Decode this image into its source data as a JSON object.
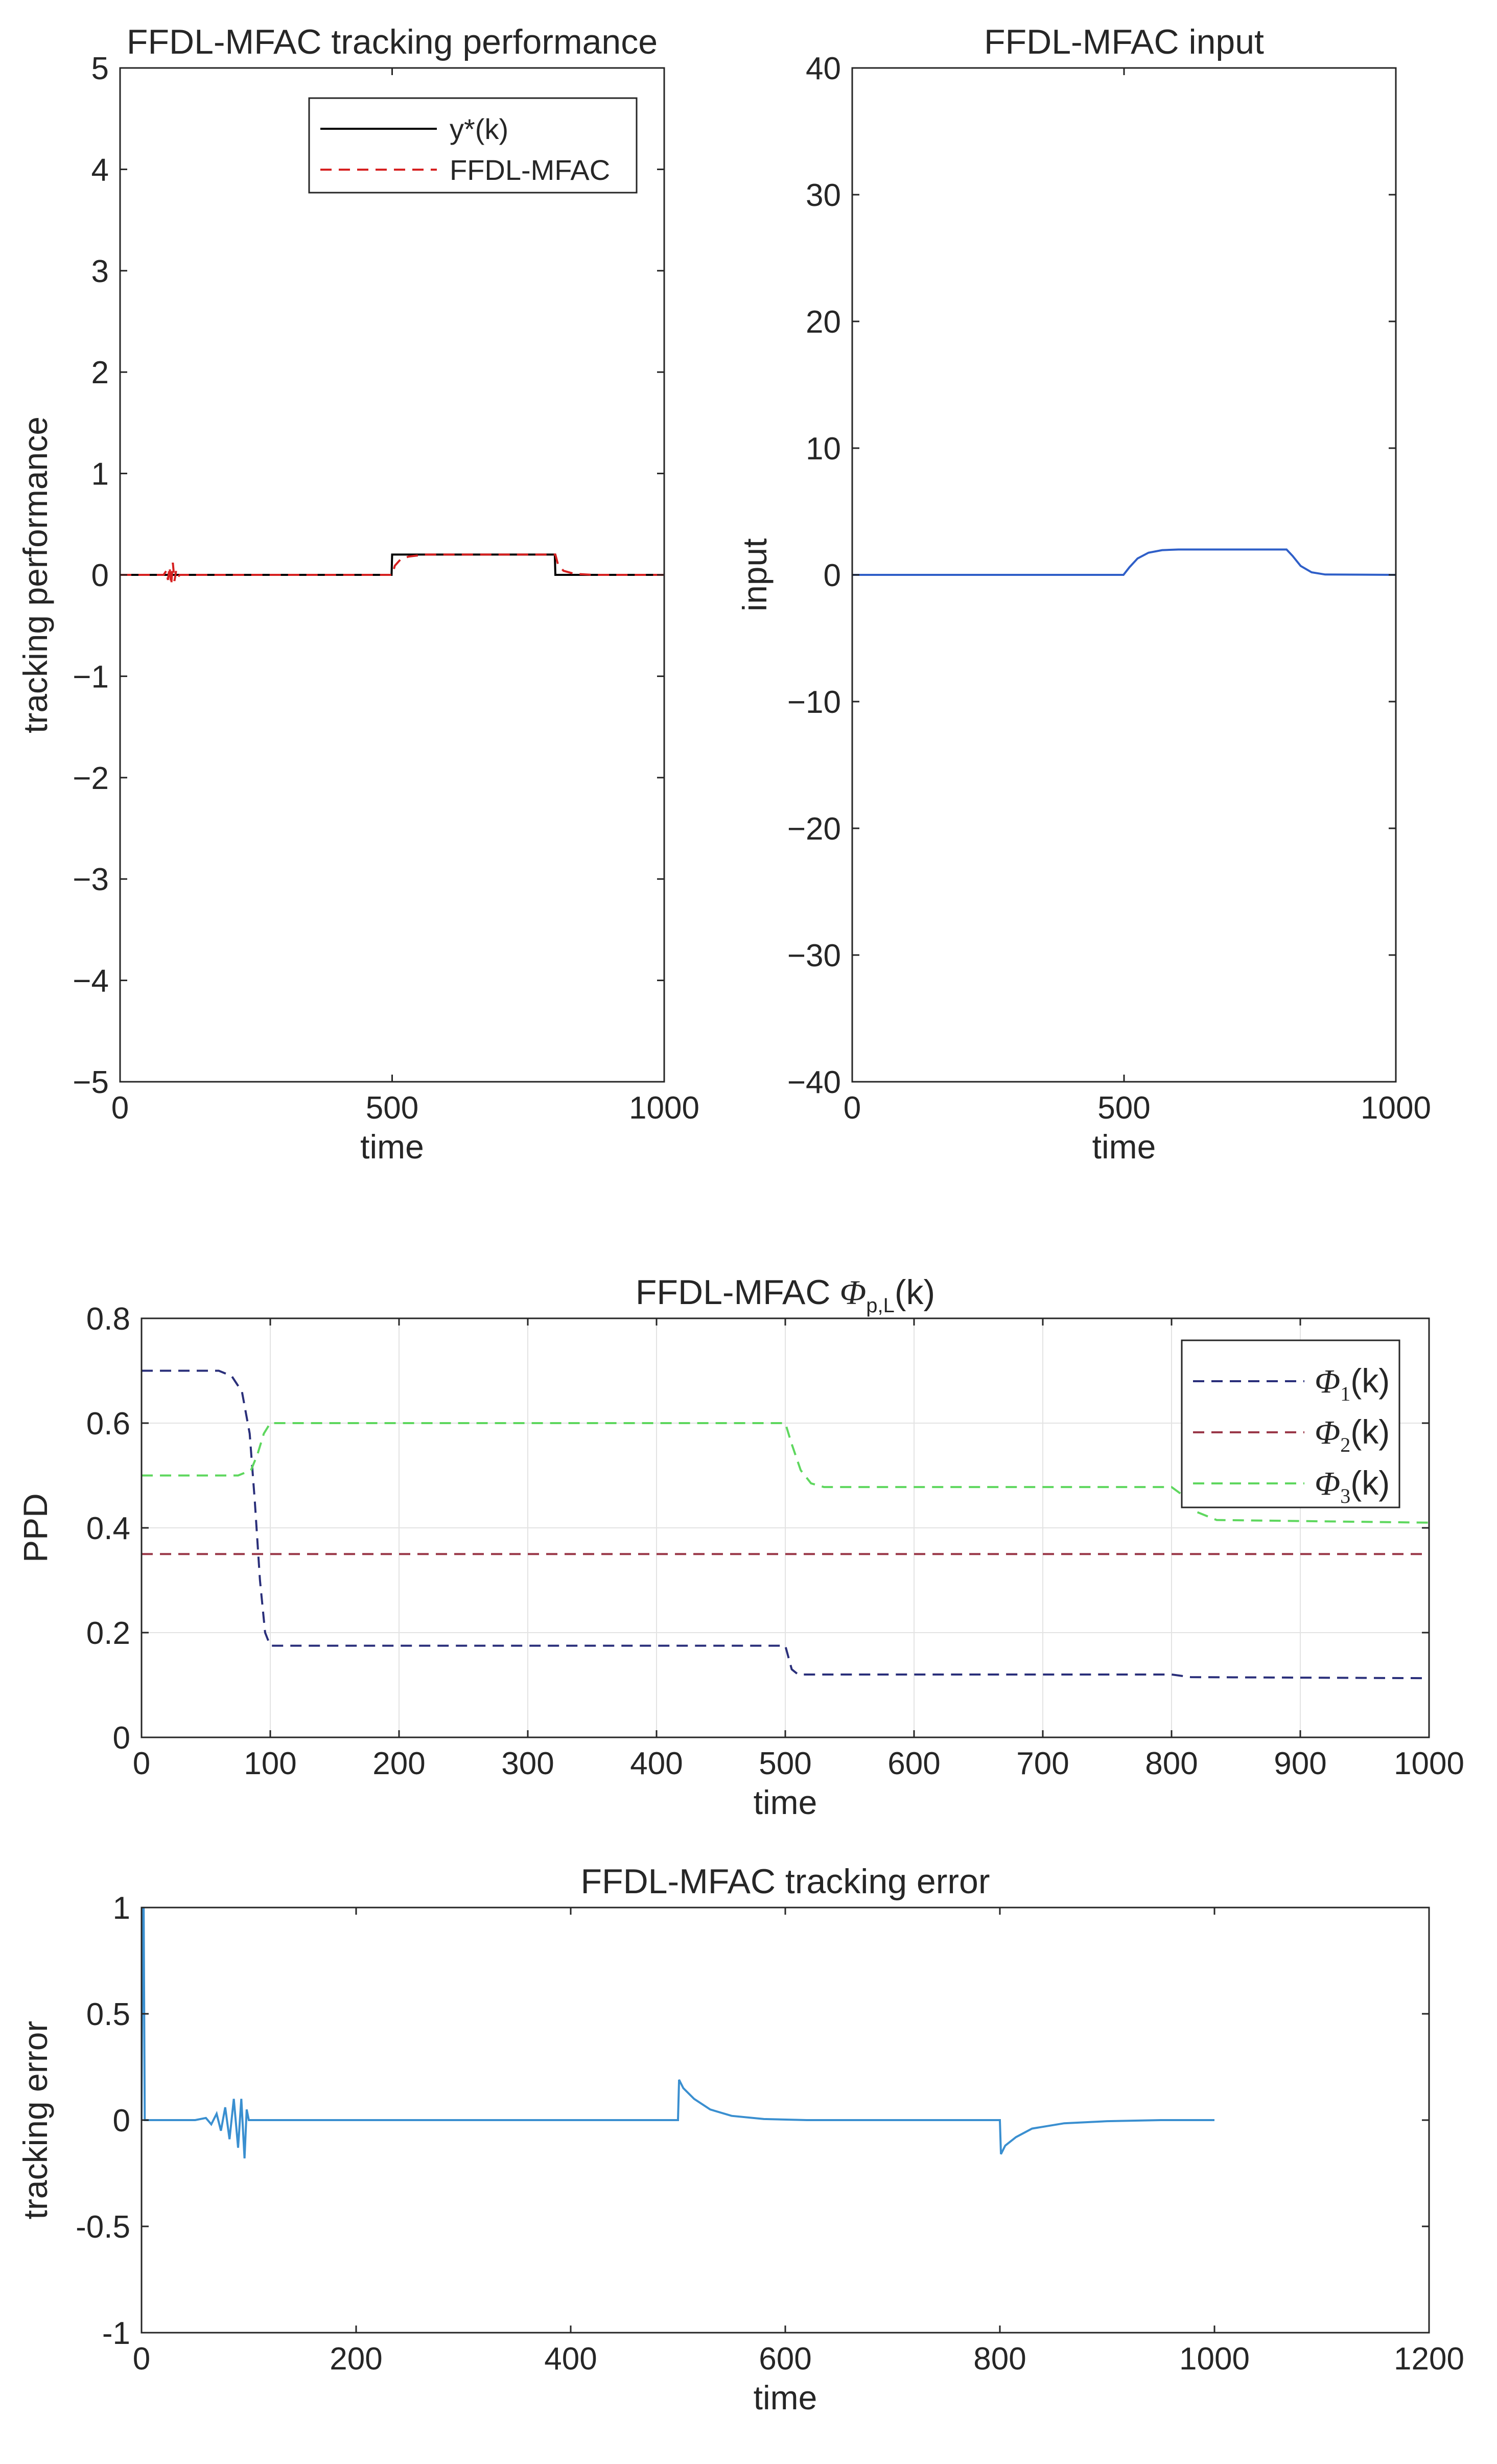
{
  "chart_data": [
    {
      "id": "tracking",
      "type": "line",
      "title": "FFDL-MFAC tracking performance",
      "xlabel": "time",
      "ylabel": "tracking performance",
      "xlim": [
        0,
        1000
      ],
      "ylim": [
        -5,
        5
      ],
      "xticks": [
        0,
        500,
        1000
      ],
      "yticks": [
        -5,
        -4,
        -3,
        -2,
        -1,
        0,
        1,
        2,
        3,
        4,
        5
      ],
      "grid": false,
      "legend_position": "top-right",
      "series": [
        {
          "name": "y*(k)",
          "color": "#000000",
          "style": "solid",
          "points": [
            [
              0,
              0
            ],
            [
              499,
              0
            ],
            [
              500,
              0.2
            ],
            [
              799,
              0.2
            ],
            [
              800,
              0
            ],
            [
              1000,
              0
            ]
          ]
        },
        {
          "name": "FFDL-MFAC",
          "color": "#d62020",
          "style": "dashed",
          "points": [
            [
              0,
              0
            ],
            [
              80,
              0
            ],
            [
              85,
              0.04
            ],
            [
              88,
              -0.05
            ],
            [
              91,
              0.08
            ],
            [
              94,
              -0.1
            ],
            [
              97,
              0.12
            ],
            [
              100,
              -0.06
            ],
            [
              103,
              0.04
            ],
            [
              106,
              -0.02
            ],
            [
              110,
              0
            ],
            [
              499,
              0
            ],
            [
              500,
              0
            ],
            [
              505,
              0.09
            ],
            [
              515,
              0.15
            ],
            [
              530,
              0.18
            ],
            [
              560,
              0.2
            ],
            [
              799,
              0.2
            ],
            [
              800,
              0.2
            ],
            [
              805,
              0.1
            ],
            [
              815,
              0.04
            ],
            [
              835,
              0.01
            ],
            [
              870,
              0
            ],
            [
              1000,
              0
            ]
          ]
        }
      ]
    },
    {
      "id": "input",
      "type": "line",
      "title": "FFDL-MFAC input",
      "xlabel": "time",
      "ylabel": "input",
      "xlim": [
        0,
        1000
      ],
      "ylim": [
        -40,
        40
      ],
      "xticks": [
        0,
        500,
        1000
      ],
      "yticks": [
        -40,
        -30,
        -20,
        -10,
        0,
        10,
        20,
        30,
        40
      ],
      "ytick_labels": [
        "−40",
        "−30",
        "−20",
        "−10",
        "0",
        "10",
        "20",
        "30",
        "40"
      ],
      "grid": false,
      "series": [
        {
          "name": "input",
          "color": "#2f5fc8",
          "style": "solid",
          "points": [
            [
              0,
              0
            ],
            [
              499,
              0
            ],
            [
              510,
              0.6
            ],
            [
              525,
              1.3
            ],
            [
              545,
              1.75
            ],
            [
              570,
              1.95
            ],
            [
              600,
              2
            ],
            [
              799,
              2
            ],
            [
              810,
              1.5
            ],
            [
              825,
              0.7
            ],
            [
              845,
              0.2
            ],
            [
              870,
              0.03
            ],
            [
              1000,
              0
            ]
          ]
        }
      ]
    },
    {
      "id": "ppd",
      "type": "line",
      "title": "FFDL-MFAC",
      "title_symbol": "Φ",
      "title_subscript": "p,L",
      "title_suffix": "(k)",
      "xlabel": "time",
      "ylabel": "PPD",
      "xlim": [
        0,
        1000
      ],
      "ylim": [
        0,
        0.8
      ],
      "xticks": [
        0,
        100,
        200,
        300,
        400,
        500,
        600,
        700,
        800,
        900,
        1000
      ],
      "yticks": [
        0,
        0.2,
        0.4,
        0.6,
        0.8
      ],
      "grid": true,
      "legend_position": "top-right",
      "series": [
        {
          "name": "Φ",
          "sub": "1",
          "suffix": "(k)",
          "color": "#2a2f7a",
          "style": "dashed",
          "points": [
            [
              0,
              0.7
            ],
            [
              60,
              0.7
            ],
            [
              70,
              0.69
            ],
            [
              78,
              0.66
            ],
            [
              84,
              0.58
            ],
            [
              88,
              0.45
            ],
            [
              92,
              0.3
            ],
            [
              96,
              0.2
            ],
            [
              100,
              0.175
            ],
            [
              500,
              0.175
            ],
            [
              505,
              0.13
            ],
            [
              510,
              0.12
            ],
            [
              800,
              0.12
            ],
            [
              815,
              0.115
            ],
            [
              1000,
              0.113
            ]
          ]
        },
        {
          "name": "Φ",
          "sub": "2",
          "suffix": "(k)",
          "color": "#9a3848",
          "style": "dashed",
          "points": [
            [
              0,
              0.35
            ],
            [
              1000,
              0.35
            ]
          ]
        },
        {
          "name": "Φ",
          "sub": "3",
          "suffix": "(k)",
          "color": "#5ed75e",
          "style": "dashed",
          "points": [
            [
              0,
              0.5
            ],
            [
              75,
              0.5
            ],
            [
              85,
              0.51
            ],
            [
              90,
              0.54
            ],
            [
              95,
              0.58
            ],
            [
              100,
              0.6
            ],
            [
              500,
              0.6
            ],
            [
              505,
              0.56
            ],
            [
              512,
              0.51
            ],
            [
              520,
              0.485
            ],
            [
              530,
              0.478
            ],
            [
              800,
              0.478
            ],
            [
              810,
              0.46
            ],
            [
              820,
              0.43
            ],
            [
              835,
              0.415
            ],
            [
              1000,
              0.41
            ]
          ]
        }
      ]
    },
    {
      "id": "error",
      "type": "line",
      "title": "FFDL-MFAC tracking error",
      "xlabel": "time",
      "ylabel": "tracking error",
      "xlim": [
        0,
        1200
      ],
      "ylim": [
        -1,
        1
      ],
      "xticks": [
        0,
        200,
        400,
        600,
        800,
        1000,
        1200
      ],
      "yticks": [
        -1,
        -0.5,
        0,
        0.5,
        1
      ],
      "grid": false,
      "series": [
        {
          "name": "error",
          "color": "#3a8fd0",
          "style": "solid",
          "points": [
            [
              0,
              0
            ],
            [
              1,
              1
            ],
            [
              2,
              1
            ],
            [
              3,
              0
            ],
            [
              50,
              0
            ],
            [
              60,
              0.01
            ],
            [
              65,
              -0.02
            ],
            [
              70,
              0.03
            ],
            [
              74,
              -0.05
            ],
            [
              78,
              0.06
            ],
            [
              82,
              -0.09
            ],
            [
              86,
              0.1
            ],
            [
              90,
              -0.13
            ],
            [
              93,
              0.1
            ],
            [
              96,
              -0.18
            ],
            [
              98,
              0.05
            ],
            [
              100,
              0
            ],
            [
              500,
              0
            ],
            [
              501,
              0.19
            ],
            [
              505,
              0.15
            ],
            [
              515,
              0.1
            ],
            [
              530,
              0.05
            ],
            [
              550,
              0.02
            ],
            [
              580,
              0.005
            ],
            [
              620,
              0
            ],
            [
              800,
              0
            ],
            [
              801,
              -0.16
            ],
            [
              805,
              -0.12
            ],
            [
              815,
              -0.08
            ],
            [
              830,
              -0.04
            ],
            [
              860,
              -0.015
            ],
            [
              900,
              -0.005
            ],
            [
              950,
              0
            ],
            [
              1000,
              0
            ]
          ]
        }
      ]
    }
  ]
}
